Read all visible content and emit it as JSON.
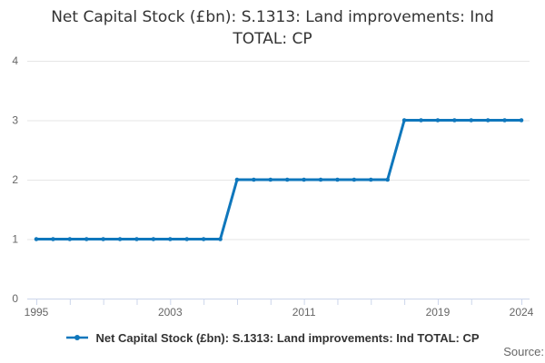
{
  "header": {
    "title_line1": "Net Capital Stock (£bn): S.1313: Land improvements: Ind",
    "title_line2": "TOTAL: CP"
  },
  "legend": {
    "label": "Net Capital Stock (£bn): S.1313: Land improvements: Ind TOTAL: CP"
  },
  "footer": {
    "source_label": "Source:"
  },
  "colors": {
    "series_line": "#0f77bc",
    "grid": "#e6e6e6",
    "axis": "#ccd6eb",
    "tick_label": "#666666",
    "title_text": "#333333",
    "legend_text": "#333333",
    "source_text": "#666666"
  },
  "chart_data": {
    "type": "line",
    "title": "Net Capital Stock (£bn): S.1313: Land improvements: Ind TOTAL: CP",
    "xlabel": "",
    "ylabel": "",
    "grid": "horizontal",
    "legend_position": "bottom",
    "x_axis": {
      "range_years": [
        1995,
        2024
      ],
      "tick_years": [
        1995,
        1997,
        1999,
        2001,
        2003,
        2005,
        2007,
        2009,
        2011,
        2013,
        2015,
        2017,
        2019,
        2021,
        2024
      ],
      "label_years": [
        1995,
        2003,
        2011,
        2019,
        2024
      ]
    },
    "y_axis": {
      "ticks": [
        0,
        1,
        2,
        3,
        4
      ],
      "range": [
        0,
        4
      ]
    },
    "series": [
      {
        "name": "Net Capital Stock (£bn): S.1313: Land improvements: Ind TOTAL: CP",
        "x": [
          1995,
          1996,
          1997,
          1998,
          1999,
          2000,
          2001,
          2002,
          2003,
          2004,
          2005,
          2006,
          2007,
          2008,
          2009,
          2010,
          2011,
          2012,
          2013,
          2014,
          2015,
          2016,
          2017,
          2018,
          2019,
          2020,
          2021,
          2022,
          2023,
          2024
        ],
        "values": [
          1,
          1,
          1,
          1,
          1,
          1,
          1,
          1,
          1,
          1,
          1,
          1,
          2,
          2,
          2,
          2,
          2,
          2,
          2,
          2,
          2,
          2,
          3,
          3,
          3,
          3,
          3,
          3,
          3,
          3
        ]
      }
    ]
  }
}
